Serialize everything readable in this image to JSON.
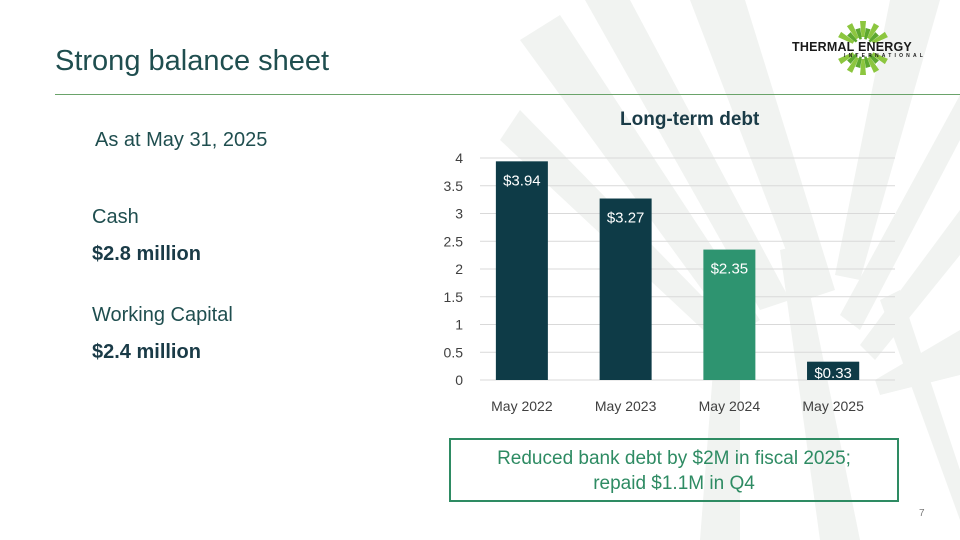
{
  "header": {
    "title": "Strong balance sheet",
    "logo_text": "THERMAL ENERGY",
    "logo_subtext": "INTERNATIONAL"
  },
  "left_panel": {
    "as_at": "As at May 31, 2025",
    "cash_label": "Cash",
    "cash_value": "$2.8 million",
    "wc_label": "Working Capital",
    "wc_value": "$2.4 million"
  },
  "chart_data": {
    "type": "bar",
    "title": "Long-term debt",
    "categories": [
      "May 2022",
      "May 2023",
      "May 2024",
      "May 2025"
    ],
    "values": [
      3.94,
      3.27,
      2.35,
      0.33
    ],
    "data_labels": [
      "$3.94",
      "$3.27",
      "$2.35",
      "$0.33"
    ],
    "bar_colors": [
      "#0e3b47",
      "#0e3b47",
      "#2e9470",
      "#0e3b47"
    ],
    "yticks": [
      "0",
      "0.5",
      "1",
      "1.5",
      "2",
      "2.5",
      "3",
      "3.5",
      "4"
    ],
    "ylim": [
      0,
      4
    ],
    "xlabel": "",
    "ylabel": "",
    "grid": true
  },
  "callout": {
    "line1": "Reduced bank debt by $2M in fiscal 2025;",
    "line2": "repaid $1.1M in Q4"
  },
  "footer": {
    "page_number": "7"
  },
  "colors": {
    "title": "#1f4e4f",
    "accent": "#2e8b63",
    "dark_bar": "#0e3b47",
    "green_bar": "#2e9470"
  }
}
